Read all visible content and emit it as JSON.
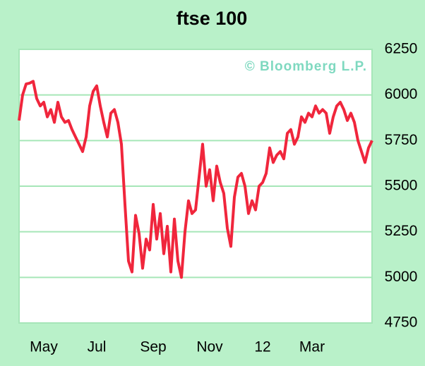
{
  "chart_data": {
    "type": "line",
    "title": "ftse 100",
    "annotation": "© Bloomberg L.P.",
    "categories": [
      null,
      null,
      null,
      null,
      null,
      null,
      null,
      "May",
      null,
      null,
      null,
      null,
      null,
      null,
      null,
      null,
      null,
      null,
      null,
      null,
      null,
      null,
      "Jul",
      null,
      null,
      null,
      null,
      null,
      null,
      null,
      null,
      null,
      null,
      null,
      null,
      null,
      null,
      null,
      "Sep",
      null,
      null,
      null,
      null,
      null,
      null,
      null,
      null,
      null,
      null,
      null,
      null,
      null,
      null,
      null,
      "Nov",
      null,
      null,
      null,
      null,
      null,
      null,
      null,
      null,
      null,
      null,
      null,
      null,
      null,
      null,
      "12",
      null,
      null,
      null,
      null,
      null,
      null,
      null,
      null,
      null,
      null,
      null,
      null,
      null,
      "Mar",
      null,
      null,
      null,
      null,
      null,
      null,
      null,
      null,
      null,
      null,
      null,
      null,
      null,
      null,
      null,
      null,
      null
    ],
    "series": [
      {
        "name": "ftse 100",
        "color": "#f0263c",
        "values": [
          5860,
          6000,
          6060,
          6065,
          6075,
          5980,
          5940,
          5960,
          5880,
          5920,
          5850,
          5960,
          5880,
          5850,
          5860,
          5810,
          5770,
          5730,
          5690,
          5770,
          5940,
          6020,
          6050,
          5940,
          5850,
          5770,
          5900,
          5920,
          5850,
          5730,
          5400,
          5090,
          5030,
          5340,
          5240,
          5050,
          5210,
          5150,
          5400,
          5210,
          5350,
          5130,
          5280,
          5030,
          5320,
          5090,
          5000,
          5250,
          5420,
          5350,
          5370,
          5550,
          5730,
          5500,
          5590,
          5420,
          5610,
          5520,
          5460,
          5270,
          5170,
          5440,
          5550,
          5570,
          5500,
          5350,
          5420,
          5370,
          5500,
          5520,
          5570,
          5710,
          5630,
          5670,
          5690,
          5650,
          5790,
          5810,
          5730,
          5770,
          5880,
          5850,
          5900,
          5880,
          5940,
          5900,
          5920,
          5900,
          5790,
          5880,
          5940,
          5960,
          5920,
          5860,
          5900,
          5850,
          5750,
          5690,
          5630,
          5710,
          5750
        ]
      }
    ],
    "ylim": [
      4750,
      6250
    ],
    "yticks": [
      4750,
      5000,
      5250,
      5500,
      5750,
      6000,
      6250
    ],
    "grid": true
  }
}
